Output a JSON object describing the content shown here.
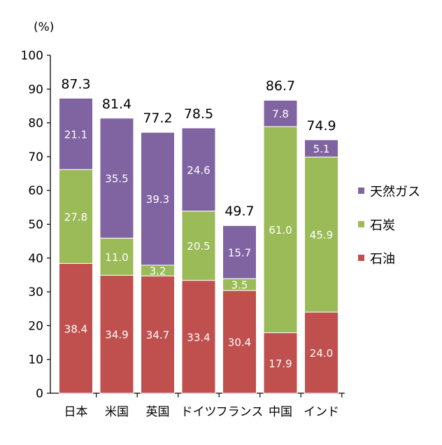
{
  "chart_data": {
    "type": "bar",
    "stacked": true,
    "y_unit_label": "(%)",
    "ylim": [
      0,
      100
    ],
    "y_ticks": [
      0,
      10,
      20,
      30,
      40,
      50,
      60,
      70,
      80,
      90,
      100
    ],
    "grid": false,
    "legend_position": "right",
    "categories": [
      "日本",
      "米国",
      "英国",
      "ドイツ",
      "フランス",
      "中国",
      "インド"
    ],
    "series": [
      {
        "name": "石油",
        "color": "#c0504d",
        "values": [
          38.4,
          34.9,
          34.7,
          33.4,
          30.4,
          17.9,
          24.0
        ],
        "labels": [
          "38.4",
          "34.9",
          "34.7",
          "33.4",
          "30.4",
          "17.9",
          "24.0"
        ]
      },
      {
        "name": "石炭",
        "color": "#9bbb59",
        "values": [
          27.8,
          11.0,
          3.2,
          20.5,
          3.5,
          61.0,
          45.9
        ],
        "labels": [
          "27.8",
          "11.0",
          "3.2",
          "20.5",
          "3.5",
          "61.0",
          "45.9"
        ]
      },
      {
        "name": "天然ガス",
        "color": "#8064a2",
        "values": [
          21.1,
          35.5,
          39.3,
          24.6,
          15.7,
          7.8,
          5.1
        ],
        "labels": [
          "21.1",
          "35.5",
          "39.3",
          "24.6",
          "15.7",
          "7.8",
          "5.1"
        ]
      }
    ],
    "totals": [
      87.3,
      81.4,
      77.2,
      78.5,
      49.7,
      86.7,
      74.9
    ],
    "total_labels": [
      "87.3",
      "81.4",
      "77.2",
      "78.5",
      "49.7",
      "86.7",
      "74.9"
    ],
    "legend_order": [
      "天然ガス",
      "石炭",
      "石油"
    ]
  }
}
